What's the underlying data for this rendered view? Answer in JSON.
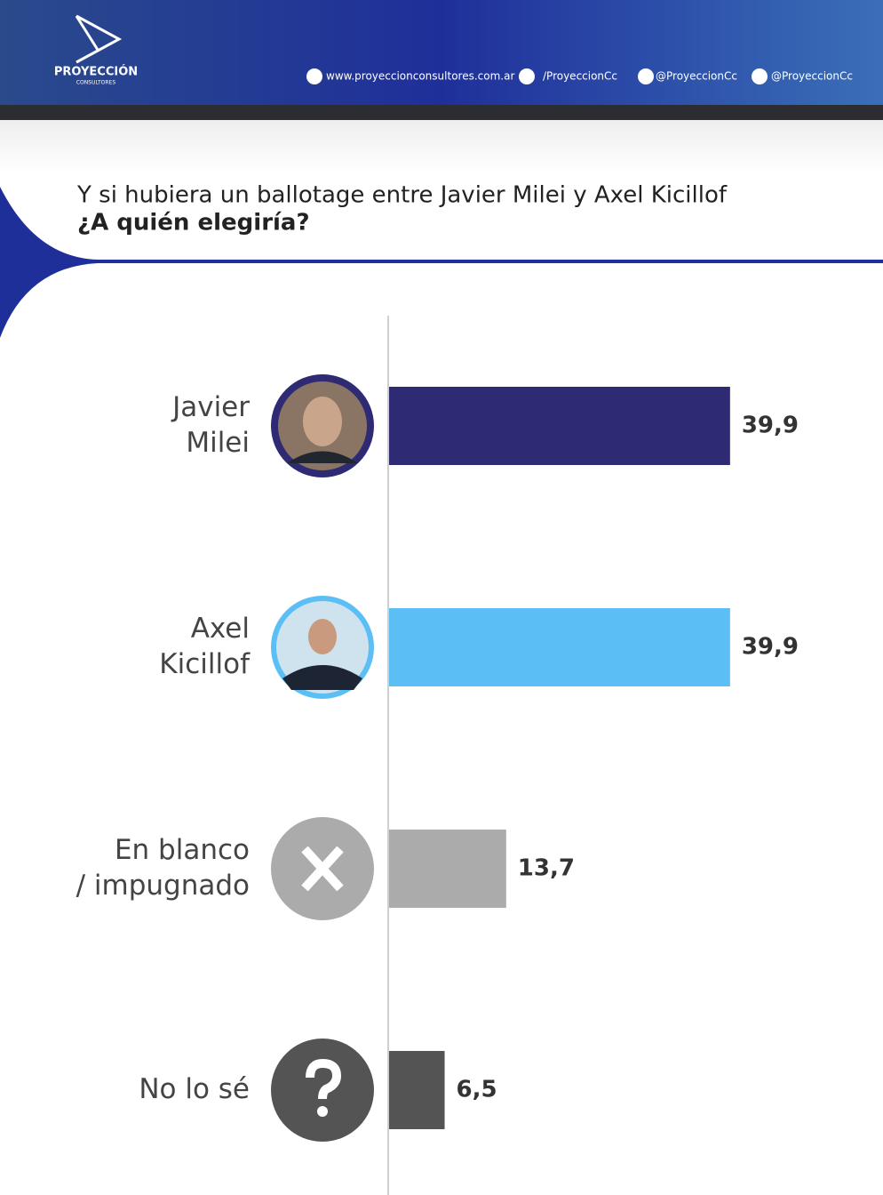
{
  "header": {
    "brand": "PROYECCIÓN",
    "brand_sub": "CONSULTORES",
    "links": [
      "www.proyeccionconsultores.com.ar",
      "/ProyeccionCc",
      "@ProyeccionCc",
      "@ProyeccionCc"
    ]
  },
  "chart_data": {
    "type": "hbar",
    "title": "Y si hubiera un ballotage entre Javier Milei y Axel Kicillof",
    "subtitle": "¿A quién elegiría?",
    "categories": [
      "Javier\nMilei",
      "Axel\nKicillof",
      "En blanco\n/ impugnado",
      "No lo sé"
    ],
    "values": [
      39.9,
      39.9,
      13.7,
      6.5
    ],
    "value_labels": [
      "39,9",
      "39,9",
      "13,7",
      "6,5"
    ],
    "colors": [
      "#2e2b74",
      "#5bbff5",
      "#acabab",
      "#545454"
    ]
  }
}
